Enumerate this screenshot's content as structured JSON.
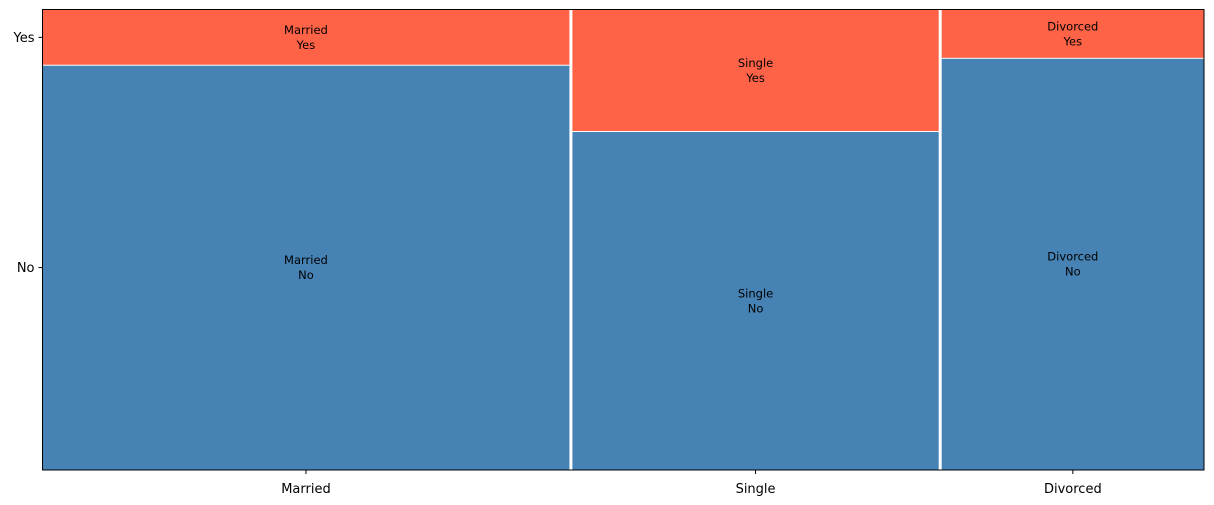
{
  "chart_data": {
    "type": "mosaic",
    "title": "",
    "xlabel": "",
    "ylabel": "",
    "categories": [
      "Married",
      "Single",
      "Divorced"
    ],
    "column_widths": [
      0.456,
      0.317,
      0.227
    ],
    "segments": [
      "No",
      "Yes"
    ],
    "series": [
      {
        "category": "Married",
        "no": 0.879,
        "yes": 0.121
      },
      {
        "category": "Single",
        "no": 0.735,
        "yes": 0.265
      },
      {
        "category": "Divorced",
        "no": 0.894,
        "yes": 0.106
      }
    ],
    "y_tick_labels": [
      "No",
      "Yes"
    ],
    "cell_labels": [
      {
        "category": "Married",
        "no": "Married\nNo",
        "yes": "Married\nYes"
      },
      {
        "category": "Single",
        "no": "Single\nNo",
        "yes": "Single\nYes"
      },
      {
        "category": "Divorced",
        "no": "Divorced\nNo",
        "yes": "Divorced\nYes"
      }
    ],
    "colors": {
      "No": "#4682b4",
      "Yes": "#ff6347"
    },
    "legend": "none",
    "grid": false
  }
}
